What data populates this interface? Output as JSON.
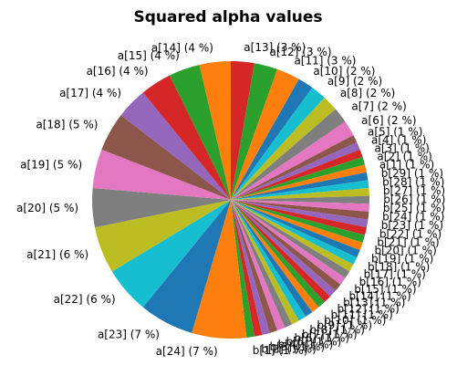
{
  "chart_data": {
    "type": "pie",
    "title": "Squared alpha values",
    "start_angle_deg": 90,
    "direction": "clockwise",
    "colors": [
      "#d62728",
      "#2ca02c",
      "#ff7f0e",
      "#1f77b4",
      "#17becf",
      "#bcbd22",
      "#7f7f7f",
      "#e377c2",
      "#8c564b",
      "#9467bd"
    ],
    "categories": [
      "a[13]",
      "a[12]",
      "a[11]",
      "a[10]",
      "a[9]",
      "a[8]",
      "a[7]",
      "a[6]",
      "a[5]",
      "a[4]",
      "a[3]",
      "a[2]",
      "a[1]",
      "b[29]",
      "b[28]",
      "b[27]",
      "b[26]",
      "b[25]",
      "b[24]",
      "b[23]",
      "b[22]",
      "b[21]",
      "b[20]",
      "b[19]",
      "b[18]",
      "b[17]",
      "b[16]",
      "b[15]",
      "b[14]",
      "b[13]",
      "b[12]",
      "b[11]",
      "b[10]",
      "b[9]",
      "b[8]",
      "b[7]",
      "b[6]",
      "b[5]",
      "b[4]",
      "b[3]",
      "b[2]",
      "b[1]",
      "a[24]",
      "a[23]",
      "a[22]",
      "a[21]",
      "a[20]",
      "a[19]",
      "a[18]",
      "a[17]",
      "a[16]",
      "a[15]",
      "a[14]"
    ],
    "values": [
      3,
      3,
      3,
      2,
      2,
      2,
      2,
      2,
      1,
      1,
      1,
      1,
      1,
      1,
      1,
      1,
      1,
      1,
      1,
      1,
      1,
      1,
      1,
      1,
      1,
      1,
      1,
      1,
      1,
      1,
      1,
      1,
      1,
      1,
      1,
      1,
      1,
      1,
      1,
      1,
      1,
      1,
      7,
      7,
      6,
      6,
      5,
      5,
      5,
      4,
      4,
      4,
      4
    ],
    "labels": [
      "a[13] (3 %)",
      "a[12] (3 %)",
      "a[11] (3 %)",
      "a[10] (2 %)",
      "a[9] (2 %)",
      "a[8] (2 %)",
      "a[7] (2 %)",
      "a[6] (2 %)",
      "a[5] (1 %)",
      "a[4] (1 %)",
      "a[3] (1 %)",
      "a[2] (1 %)",
      "a[1] (1 %)",
      "b[29] (1 %)",
      "b[28] (1 %)",
      "b[27] (1 %)",
      "b[26] (1 %)",
      "b[25] (1 %)",
      "b[24] (1 %)",
      "b[23] (1 %)",
      "b[22] (1 %)",
      "b[21] (1 %)",
      "b[20] (1 %)",
      "b[19] (1 %)",
      "b[18] (1 %)",
      "b[17] (1 %)",
      "b[16] (1 %)",
      "b[15] (1 %)",
      "b[14] (1 %)",
      "b[13] (1 %)",
      "b[12] (1 %)",
      "b[11] (1 %)",
      "b[10] (1 %)",
      "b[9] (1 %)",
      "b[8] (1 %)",
      "b[7] (1 %)",
      "b[6] (1 %)",
      "b[5] (1 %)",
      "b[4] (1 %)",
      "b[3] (1 %)",
      "b[2] (1 %)",
      "b[1] (1 %)",
      "a[24] (7 %)",
      "a[23] (7 %)",
      "a[22] (6 %)",
      "a[21] (6 %)",
      "a[20] (5 %)",
      "a[19] (5 %)",
      "a[18] (5 %)",
      "a[17] (4 %)",
      "a[16] (4 %)",
      "a[15] (4 %)",
      "a[14] (4 %)"
    ]
  }
}
